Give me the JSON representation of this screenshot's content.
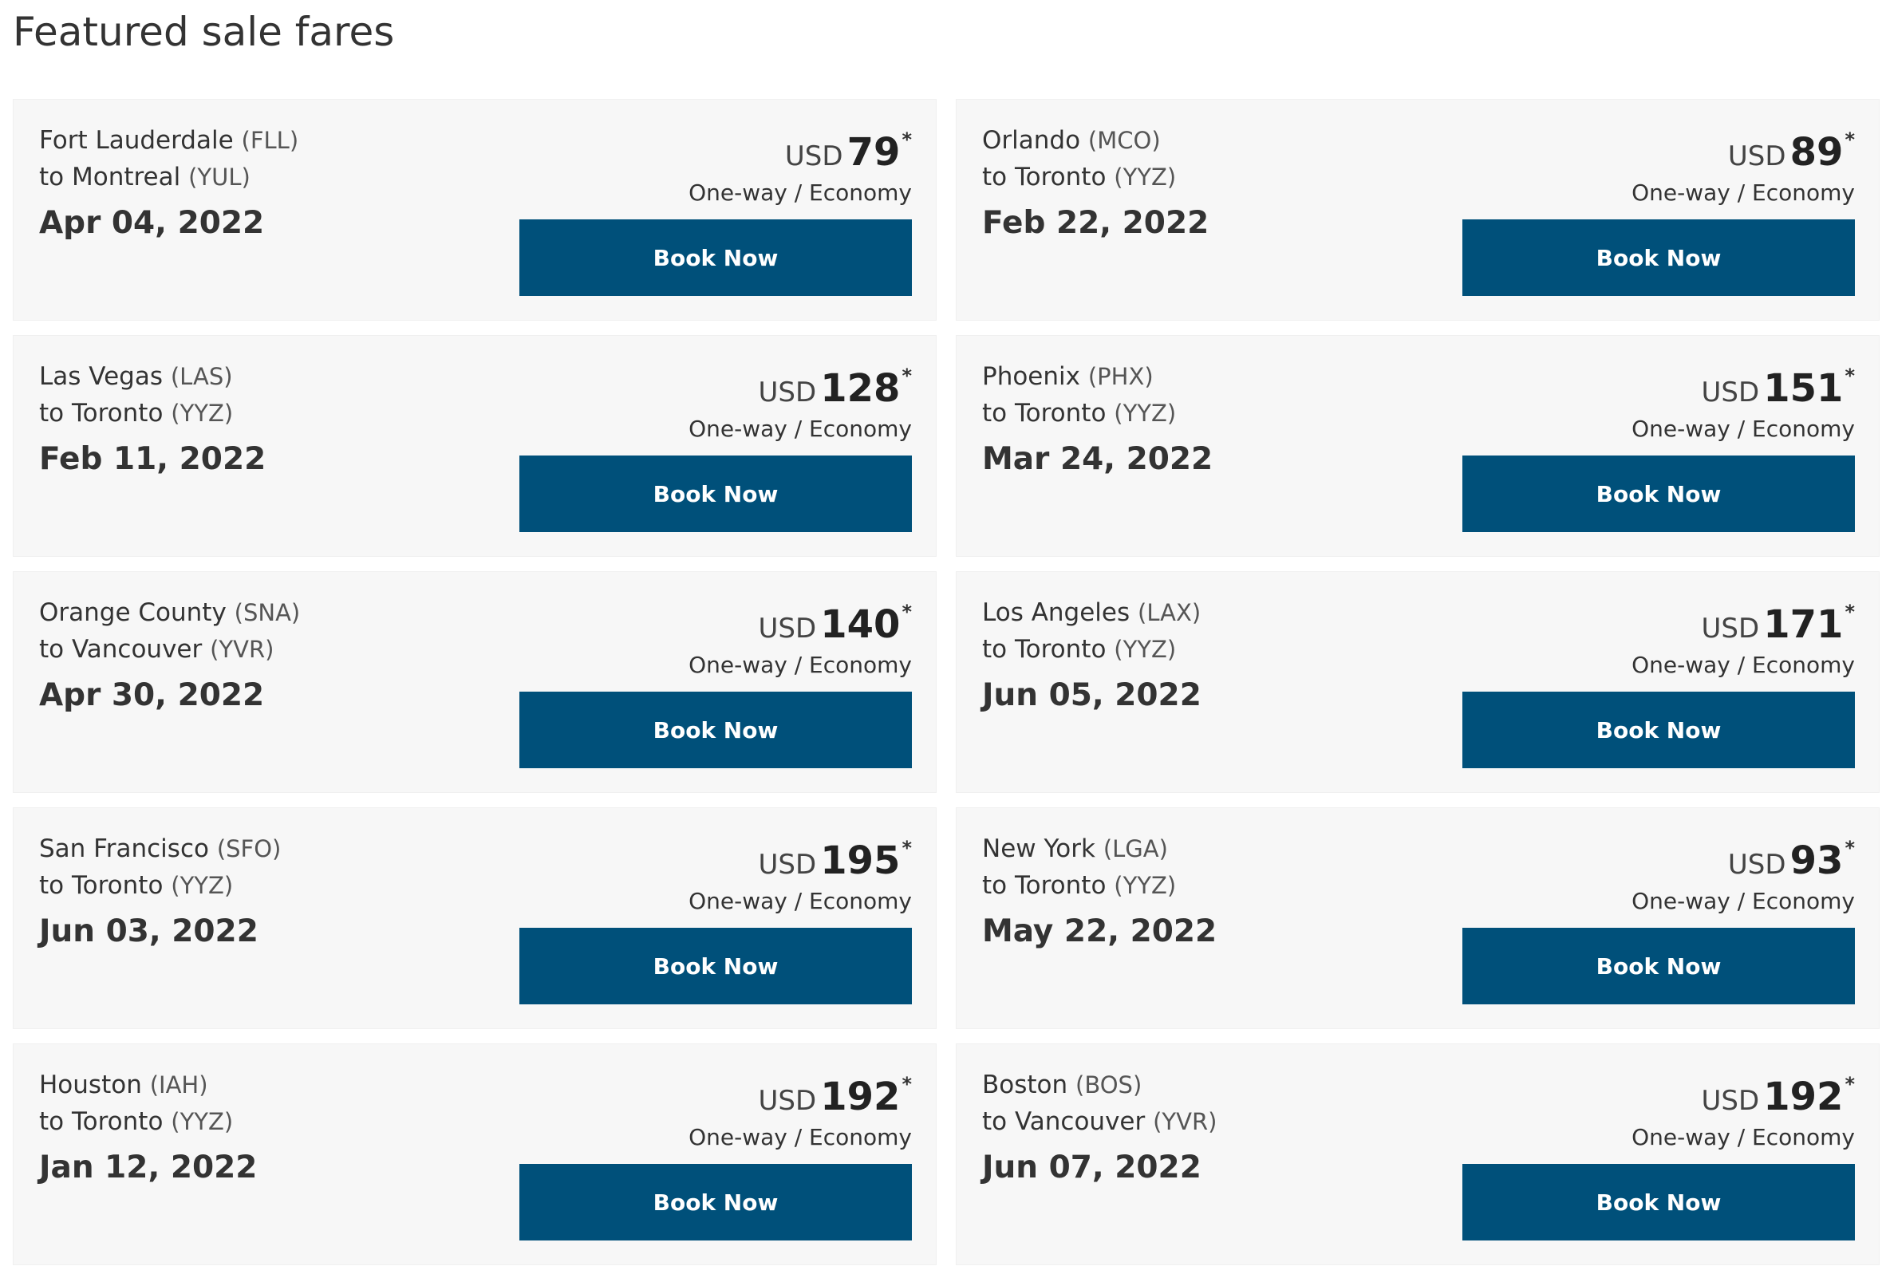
{
  "page": {
    "title": "Featured sale fares"
  },
  "colors": {
    "button_bg": "#00507a",
    "card_bg": "#f7f7f7"
  },
  "fares": [
    {
      "from_city": "Fort Lauderdale",
      "from_code": "(FLL)",
      "to_city": "to Montreal",
      "to_code": "(YUL)",
      "date": "Apr 04, 2022",
      "currency": "USD",
      "amount": "79",
      "asterisk": "*",
      "fare_type": "One-way / Economy",
      "button": "Book Now"
    },
    {
      "from_city": "Orlando",
      "from_code": "(MCO)",
      "to_city": "to Toronto",
      "to_code": "(YYZ)",
      "date": "Feb 22, 2022",
      "currency": "USD",
      "amount": "89",
      "asterisk": "*",
      "fare_type": "One-way / Economy",
      "button": "Book Now"
    },
    {
      "from_city": "Las Vegas",
      "from_code": "(LAS)",
      "to_city": "to Toronto",
      "to_code": "(YYZ)",
      "date": "Feb 11, 2022",
      "currency": "USD",
      "amount": "128",
      "asterisk": "*",
      "fare_type": "One-way / Economy",
      "button": "Book Now"
    },
    {
      "from_city": "Phoenix",
      "from_code": "(PHX)",
      "to_city": "to Toronto",
      "to_code": "(YYZ)",
      "date": "Mar 24, 2022",
      "currency": "USD",
      "amount": "151",
      "asterisk": "*",
      "fare_type": "One-way / Economy",
      "button": "Book Now"
    },
    {
      "from_city": "Orange County",
      "from_code": "(SNA)",
      "to_city": "to Vancouver",
      "to_code": "(YVR)",
      "date": "Apr 30, 2022",
      "currency": "USD",
      "amount": "140",
      "asterisk": "*",
      "fare_type": "One-way / Economy",
      "button": "Book Now"
    },
    {
      "from_city": "Los Angeles",
      "from_code": "(LAX)",
      "to_city": "to Toronto",
      "to_code": "(YYZ)",
      "date": "Jun 05, 2022",
      "currency": "USD",
      "amount": "171",
      "asterisk": "*",
      "fare_type": "One-way / Economy",
      "button": "Book Now"
    },
    {
      "from_city": "San Francisco",
      "from_code": "(SFO)",
      "to_city": "to Toronto",
      "to_code": "(YYZ)",
      "date": "Jun 03, 2022",
      "currency": "USD",
      "amount": "195",
      "asterisk": "*",
      "fare_type": "One-way / Economy",
      "button": "Book Now"
    },
    {
      "from_city": "New York",
      "from_code": "(LGA)",
      "to_city": "to Toronto",
      "to_code": "(YYZ)",
      "date": "May 22, 2022",
      "currency": "USD",
      "amount": "93",
      "asterisk": "*",
      "fare_type": "One-way / Economy",
      "button": "Book Now"
    },
    {
      "from_city": "Houston",
      "from_code": "(IAH)",
      "to_city": "to Toronto",
      "to_code": "(YYZ)",
      "date": "Jan 12, 2022",
      "currency": "USD",
      "amount": "192",
      "asterisk": "*",
      "fare_type": "One-way / Economy",
      "button": "Book Now"
    },
    {
      "from_city": "Boston",
      "from_code": "(BOS)",
      "to_city": "to Vancouver",
      "to_code": "(YVR)",
      "date": "Jun 07, 2022",
      "currency": "USD",
      "amount": "192",
      "asterisk": "*",
      "fare_type": "One-way / Economy",
      "button": "Book Now"
    }
  ]
}
